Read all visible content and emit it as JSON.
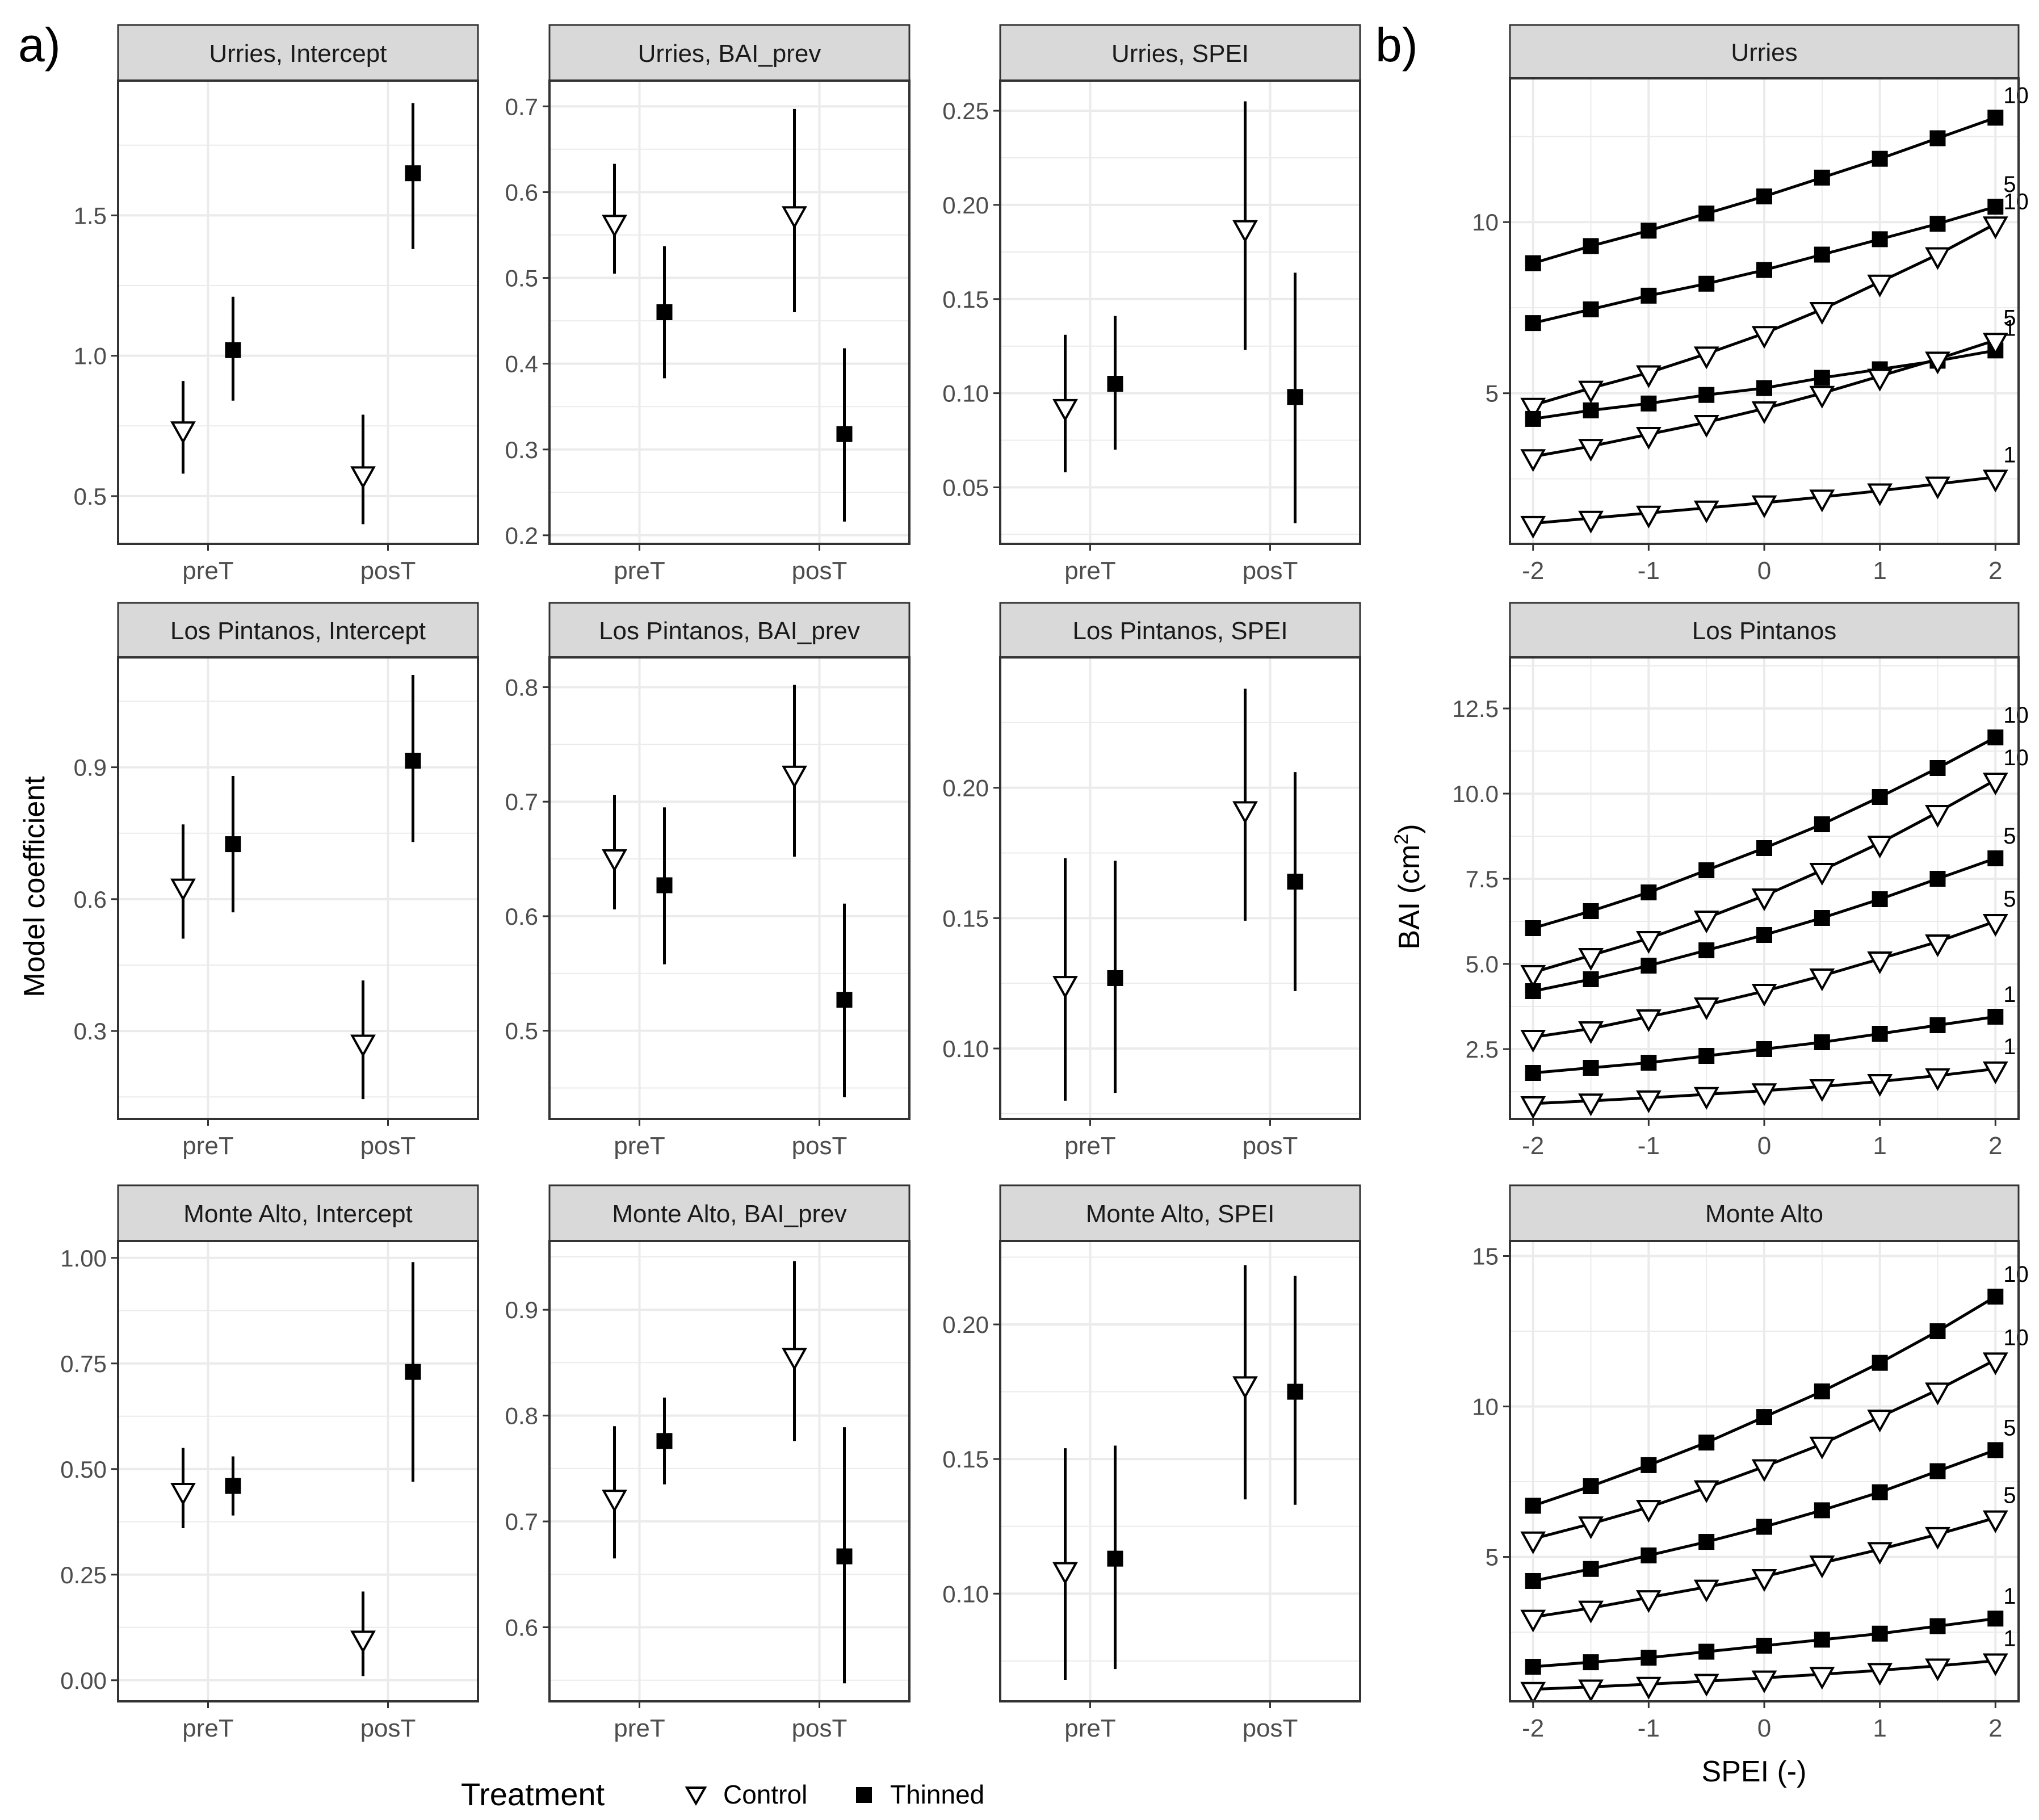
{
  "figure": {
    "panel_a_label": "a)",
    "panel_b_label": "b)",
    "y_axis_label_a": "Model coefficient",
    "y_axis_label_b_prefix": "BAI (cm",
    "y_axis_label_b_sup": "2",
    "y_axis_label_b_suffix": ")",
    "x_axis_label_b": "SPEI (-)",
    "legend": {
      "title": "Treatment",
      "items": [
        {
          "label": "Control",
          "shape": "triangle-down-open"
        },
        {
          "label": "Thinned",
          "shape": "square-filled"
        }
      ]
    },
    "colors": {
      "panel_strip": "#d9d9d9",
      "grid": "#ebebeb",
      "border": "#333333",
      "marker": "#000000",
      "background": "#ffffff"
    }
  },
  "chart_data": [
    {
      "type": "pointrange",
      "title": "Urries, Intercept",
      "categories": [
        "preT",
        "posT"
      ],
      "ylim": [
        0.33,
        1.98
      ],
      "yticks": [
        0.5,
        1.0,
        1.5
      ],
      "ytick_labels": [
        "0.5",
        "1.0",
        "1.5"
      ],
      "series": [
        {
          "name": "Control",
          "points": [
            {
              "x": "preT",
              "y": 0.74,
              "lo": 0.58,
              "hi": 0.91
            },
            {
              "x": "posT",
              "y": 0.58,
              "lo": 0.4,
              "hi": 0.79
            }
          ]
        },
        {
          "name": "Thinned",
          "points": [
            {
              "x": "preT",
              "y": 1.02,
              "lo": 0.84,
              "hi": 1.21
            },
            {
              "x": "posT",
              "y": 1.65,
              "lo": 1.38,
              "hi": 1.9
            }
          ]
        }
      ]
    },
    {
      "type": "pointrange",
      "title": "Urries, BAI_prev",
      "categories": [
        "preT",
        "posT"
      ],
      "ylim": [
        0.19,
        0.73
      ],
      "yticks": [
        0.2,
        0.3,
        0.4,
        0.5,
        0.6,
        0.7
      ],
      "ytick_labels": [
        "0.2",
        "0.3",
        "0.4",
        "0.5",
        "0.6",
        "0.7"
      ],
      "series": [
        {
          "name": "Control",
          "points": [
            {
              "x": "preT",
              "y": 0.565,
              "lo": 0.505,
              "hi": 0.633
            },
            {
              "x": "posT",
              "y": 0.575,
              "lo": 0.46,
              "hi": 0.697
            }
          ]
        },
        {
          "name": "Thinned",
          "points": [
            {
              "x": "preT",
              "y": 0.46,
              "lo": 0.383,
              "hi": 0.537
            },
            {
              "x": "posT",
              "y": 0.318,
              "lo": 0.216,
              "hi": 0.418
            }
          ]
        }
      ]
    },
    {
      "type": "pointrange",
      "title": "Urries, SPEI",
      "categories": [
        "preT",
        "posT"
      ],
      "ylim": [
        0.02,
        0.266
      ],
      "yticks": [
        0.05,
        0.1,
        0.15,
        0.2,
        0.25
      ],
      "ytick_labels": [
        "0.05",
        "0.10",
        "0.15",
        "0.20",
        "0.25"
      ],
      "series": [
        {
          "name": "Control",
          "points": [
            {
              "x": "preT",
              "y": 0.093,
              "lo": 0.058,
              "hi": 0.131
            },
            {
              "x": "posT",
              "y": 0.188,
              "lo": 0.123,
              "hi": 0.255
            }
          ]
        },
        {
          "name": "Thinned",
          "points": [
            {
              "x": "preT",
              "y": 0.105,
              "lo": 0.07,
              "hi": 0.141
            },
            {
              "x": "posT",
              "y": 0.098,
              "lo": 0.031,
              "hi": 0.164
            }
          ]
        }
      ]
    },
    {
      "type": "pointrange",
      "title": "Los Pintanos, Intercept",
      "categories": [
        "preT",
        "posT"
      ],
      "ylim": [
        0.1,
        1.15
      ],
      "yticks": [
        0.3,
        0.6,
        0.9
      ],
      "ytick_labels": [
        "0.3",
        "0.6",
        "0.9"
      ],
      "series": [
        {
          "name": "Control",
          "points": [
            {
              "x": "preT",
              "y": 0.63,
              "lo": 0.51,
              "hi": 0.77
            },
            {
              "x": "posT",
              "y": 0.275,
              "lo": 0.145,
              "hi": 0.415
            }
          ]
        },
        {
          "name": "Thinned",
          "points": [
            {
              "x": "preT",
              "y": 0.725,
              "lo": 0.57,
              "hi": 0.88
            },
            {
              "x": "posT",
              "y": 0.915,
              "lo": 0.73,
              "hi": 1.11
            }
          ]
        }
      ]
    },
    {
      "type": "pointrange",
      "title": "Los Pintanos, BAI_prev",
      "categories": [
        "preT",
        "posT"
      ],
      "ylim": [
        0.423,
        0.826
      ],
      "yticks": [
        0.5,
        0.6,
        0.7,
        0.8
      ],
      "ytick_labels": [
        "0.5",
        "0.6",
        "0.7",
        "0.8"
      ],
      "series": [
        {
          "name": "Control",
          "points": [
            {
              "x": "preT",
              "y": 0.652,
              "lo": 0.606,
              "hi": 0.706
            },
            {
              "x": "posT",
              "y": 0.725,
              "lo": 0.652,
              "hi": 0.802
            }
          ]
        },
        {
          "name": "Thinned",
          "points": [
            {
              "x": "preT",
              "y": 0.627,
              "lo": 0.558,
              "hi": 0.695
            },
            {
              "x": "posT",
              "y": 0.527,
              "lo": 0.442,
              "hi": 0.611
            }
          ]
        }
      ]
    },
    {
      "type": "pointrange",
      "title": "Los Pintanos, SPEI",
      "categories": [
        "preT",
        "posT"
      ],
      "ylim": [
        0.073,
        0.25
      ],
      "yticks": [
        0.1,
        0.15,
        0.2
      ],
      "ytick_labels": [
        "0.10",
        "0.15",
        "0.20"
      ],
      "series": [
        {
          "name": "Control",
          "points": [
            {
              "x": "preT",
              "y": 0.125,
              "lo": 0.08,
              "hi": 0.173
            },
            {
              "x": "posT",
              "y": 0.192,
              "lo": 0.149,
              "hi": 0.238
            }
          ]
        },
        {
          "name": "Thinned",
          "points": [
            {
              "x": "preT",
              "y": 0.127,
              "lo": 0.083,
              "hi": 0.172
            },
            {
              "x": "posT",
              "y": 0.164,
              "lo": 0.122,
              "hi": 0.206
            }
          ]
        }
      ]
    },
    {
      "type": "pointrange",
      "title": "Monte Alto, Intercept",
      "categories": [
        "preT",
        "posT"
      ],
      "ylim": [
        -0.05,
        1.04
      ],
      "yticks": [
        0.0,
        0.25,
        0.5,
        0.75,
        1.0
      ],
      "ytick_labels": [
        "0.00",
        "0.25",
        "0.50",
        "0.75",
        "1.00"
      ],
      "series": [
        {
          "name": "Control",
          "points": [
            {
              "x": "preT",
              "y": 0.45,
              "lo": 0.36,
              "hi": 0.55
            },
            {
              "x": "posT",
              "y": 0.1,
              "lo": 0.01,
              "hi": 0.21
            }
          ]
        },
        {
          "name": "Thinned",
          "points": [
            {
              "x": "preT",
              "y": 0.46,
              "lo": 0.39,
              "hi": 0.53
            },
            {
              "x": "posT",
              "y": 0.73,
              "lo": 0.47,
              "hi": 0.99
            }
          ]
        }
      ]
    },
    {
      "type": "pointrange",
      "title": "Monte Alto, BAI_prev",
      "categories": [
        "preT",
        "posT"
      ],
      "ylim": [
        0.53,
        0.965
      ],
      "yticks": [
        0.6,
        0.7,
        0.8,
        0.9
      ],
      "ytick_labels": [
        "0.6",
        "0.7",
        "0.8",
        "0.9"
      ],
      "series": [
        {
          "name": "Control",
          "points": [
            {
              "x": "preT",
              "y": 0.723,
              "lo": 0.665,
              "hi": 0.79
            },
            {
              "x": "posT",
              "y": 0.857,
              "lo": 0.776,
              "hi": 0.946
            }
          ]
        },
        {
          "name": "Thinned",
          "points": [
            {
              "x": "preT",
              "y": 0.776,
              "lo": 0.735,
              "hi": 0.817
            },
            {
              "x": "posT",
              "y": 0.667,
              "lo": 0.547,
              "hi": 0.789
            }
          ]
        }
      ]
    },
    {
      "type": "pointrange",
      "title": "Monte Alto, SPEI",
      "categories": [
        "preT",
        "posT"
      ],
      "ylim": [
        0.06,
        0.231
      ],
      "yticks": [
        0.1,
        0.15,
        0.2
      ],
      "ytick_labels": [
        "0.10",
        "0.15",
        "0.20"
      ],
      "series": [
        {
          "name": "Control",
          "points": [
            {
              "x": "preT",
              "y": 0.109,
              "lo": 0.068,
              "hi": 0.154
            },
            {
              "x": "posT",
              "y": 0.178,
              "lo": 0.135,
              "hi": 0.222
            }
          ]
        },
        {
          "name": "Thinned",
          "points": [
            {
              "x": "preT",
              "y": 0.113,
              "lo": 0.072,
              "hi": 0.155
            },
            {
              "x": "posT",
              "y": 0.175,
              "lo": 0.133,
              "hi": 0.218
            }
          ]
        }
      ]
    },
    {
      "type": "line",
      "title": "Urries",
      "x": [
        -2,
        -1.5,
        -1,
        -0.5,
        0,
        0.5,
        1,
        1.5,
        2
      ],
      "xlim": [
        -2.2,
        2.2
      ],
      "ylim": [
        0.6,
        14.2
      ],
      "xticks": [
        -2,
        -1,
        0,
        1,
        2
      ],
      "xtick_labels": [
        "-2",
        "-1",
        "0",
        "1",
        "2"
      ],
      "yticks": [
        5,
        10
      ],
      "ytick_labels": [
        "5",
        "10"
      ],
      "series": [
        {
          "name": "Thinned",
          "label": "10",
          "values": [
            8.8,
            9.3,
            9.75,
            10.25,
            10.75,
            11.3,
            11.85,
            12.45,
            13.05
          ]
        },
        {
          "name": "Thinned",
          "label": "5",
          "values": [
            7.05,
            7.45,
            7.85,
            8.2,
            8.6,
            9.05,
            9.5,
            9.95,
            10.45
          ]
        },
        {
          "name": "Control",
          "label": "10",
          "values": [
            4.65,
            5.15,
            5.6,
            6.15,
            6.75,
            7.45,
            8.25,
            9.05,
            9.95
          ]
        },
        {
          "name": "Thinned",
          "label": "1",
          "values": [
            4.25,
            4.5,
            4.7,
            4.95,
            5.15,
            5.45,
            5.7,
            5.95,
            6.25
          ]
        },
        {
          "name": "Control",
          "label": "5",
          "values": [
            3.15,
            3.45,
            3.8,
            4.15,
            4.55,
            5.0,
            5.5,
            6.0,
            6.55
          ]
        },
        {
          "name": "Control",
          "label": "1",
          "values": [
            1.2,
            1.35,
            1.5,
            1.65,
            1.8,
            1.97,
            2.15,
            2.35,
            2.55
          ]
        }
      ]
    },
    {
      "type": "line",
      "title": "Los Pintanos",
      "x": [
        -2,
        -1.5,
        -1,
        -0.5,
        0,
        0.5,
        1,
        1.5,
        2
      ],
      "xlim": [
        -2.2,
        2.2
      ],
      "ylim": [
        0.45,
        14.0
      ],
      "xticks": [
        -2,
        -1,
        0,
        1,
        2
      ],
      "xtick_labels": [
        "-2",
        "-1",
        "0",
        "1",
        "2"
      ],
      "yticks": [
        2.5,
        5.0,
        7.5,
        10.0,
        12.5
      ],
      "ytick_labels": [
        "2.5",
        "5.0",
        "7.5",
        "10.0",
        "12.5"
      ],
      "series": [
        {
          "name": "Thinned",
          "label": "10",
          "values": [
            6.05,
            6.55,
            7.1,
            7.75,
            8.4,
            9.1,
            9.9,
            10.75,
            11.65
          ]
        },
        {
          "name": "Control",
          "label": "10",
          "values": [
            4.75,
            5.25,
            5.75,
            6.35,
            7.0,
            7.75,
            8.55,
            9.45,
            10.4
          ]
        },
        {
          "name": "Thinned",
          "label": "5",
          "values": [
            4.2,
            4.55,
            4.95,
            5.4,
            5.85,
            6.35,
            6.9,
            7.5,
            8.1
          ]
        },
        {
          "name": "Control",
          "label": "5",
          "values": [
            2.85,
            3.1,
            3.45,
            3.8,
            4.2,
            4.65,
            5.15,
            5.65,
            6.25
          ]
        },
        {
          "name": "Thinned",
          "label": "1",
          "values": [
            1.8,
            1.95,
            2.1,
            2.3,
            2.5,
            2.7,
            2.95,
            3.2,
            3.45
          ]
        },
        {
          "name": "Control",
          "label": "1",
          "values": [
            0.9,
            0.98,
            1.07,
            1.17,
            1.28,
            1.4,
            1.55,
            1.72,
            1.92
          ]
        }
      ]
    },
    {
      "type": "line",
      "title": "Monte Alto",
      "x": [
        -2,
        -1.5,
        -1,
        -0.5,
        0,
        0.5,
        1,
        1.5,
        2
      ],
      "xlim": [
        -2.2,
        2.2
      ],
      "ylim": [
        0.2,
        15.5
      ],
      "xticks": [
        -2,
        -1,
        0,
        1,
        2
      ],
      "xtick_labels": [
        "-2",
        "-1",
        "0",
        "1",
        "2"
      ],
      "yticks": [
        5,
        10,
        15
      ],
      "ytick_labels": [
        "5",
        "10",
        "15"
      ],
      "series": [
        {
          "name": "Thinned",
          "label": "10",
          "values": [
            6.7,
            7.35,
            8.05,
            8.8,
            9.65,
            10.5,
            11.45,
            12.5,
            13.65
          ]
        },
        {
          "name": "Control",
          "label": "10",
          "values": [
            5.6,
            6.1,
            6.65,
            7.3,
            8.0,
            8.75,
            9.65,
            10.55,
            11.55
          ]
        },
        {
          "name": "Thinned",
          "label": "5",
          "values": [
            4.2,
            4.6,
            5.05,
            5.5,
            6.0,
            6.55,
            7.15,
            7.85,
            8.55
          ]
        },
        {
          "name": "Control",
          "label": "5",
          "values": [
            3.0,
            3.3,
            3.65,
            4.0,
            4.35,
            4.8,
            5.25,
            5.75,
            6.3
          ]
        },
        {
          "name": "Thinned",
          "label": "1",
          "values": [
            1.35,
            1.5,
            1.65,
            1.85,
            2.05,
            2.25,
            2.45,
            2.7,
            2.95
          ]
        },
        {
          "name": "Control",
          "label": "1",
          "values": [
            0.6,
            0.68,
            0.77,
            0.87,
            0.98,
            1.1,
            1.23,
            1.38,
            1.55
          ]
        }
      ]
    }
  ]
}
